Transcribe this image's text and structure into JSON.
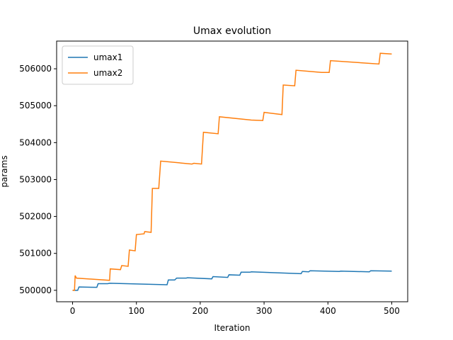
{
  "chart_data": {
    "type": "line",
    "title": "Umax evolution",
    "x_label": "Iteration",
    "y_label": "params",
    "xlim": [
      -25,
      525
    ],
    "ylim": [
      499690,
      506750
    ],
    "xticks": [
      0,
      100,
      200,
      300,
      400,
      500
    ],
    "yticks": [
      500000,
      501000,
      502000,
      503000,
      504000,
      505000,
      506000
    ],
    "legend": "upper left",
    "series": [
      {
        "name": "umax1",
        "color": "#1f77b4",
        "x": [
          0,
          8,
          10,
          38,
          40,
          55,
          58,
          148,
          150,
          160,
          163,
          178,
          180,
          218,
          220,
          243,
          245,
          262,
          264,
          278,
          280,
          358,
          360,
          370,
          372,
          418,
          420,
          465,
          467,
          500
        ],
        "values": [
          500000,
          500000,
          500090,
          500080,
          500180,
          500180,
          500190,
          500150,
          500280,
          500280,
          500330,
          500330,
          500340,
          500310,
          500370,
          500350,
          500420,
          500410,
          500490,
          500490,
          500500,
          500450,
          500510,
          500500,
          500530,
          500510,
          500520,
          500500,
          500530,
          500520
        ]
      },
      {
        "name": "umax2",
        "color": "#ff7f0e",
        "x": [
          0,
          3,
          4,
          6,
          58,
          59,
          75,
          77,
          87,
          89,
          98,
          100,
          112,
          113,
          123,
          125,
          135,
          138,
          187,
          190,
          202,
          205,
          228,
          230,
          280,
          298,
          300,
          328,
          330,
          348,
          350,
          390,
          402,
          404,
          480,
          482,
          500
        ],
        "values": [
          500000,
          500000,
          500400,
          500330,
          500270,
          500580,
          500560,
          500670,
          500650,
          501090,
          501070,
          501510,
          501530,
          501590,
          501570,
          502760,
          502760,
          503500,
          503420,
          503440,
          503420,
          504280,
          504240,
          504700,
          504610,
          504600,
          504820,
          504760,
          505560,
          505540,
          505960,
          505900,
          505900,
          506220,
          506130,
          506420,
          506400
        ]
      }
    ]
  }
}
